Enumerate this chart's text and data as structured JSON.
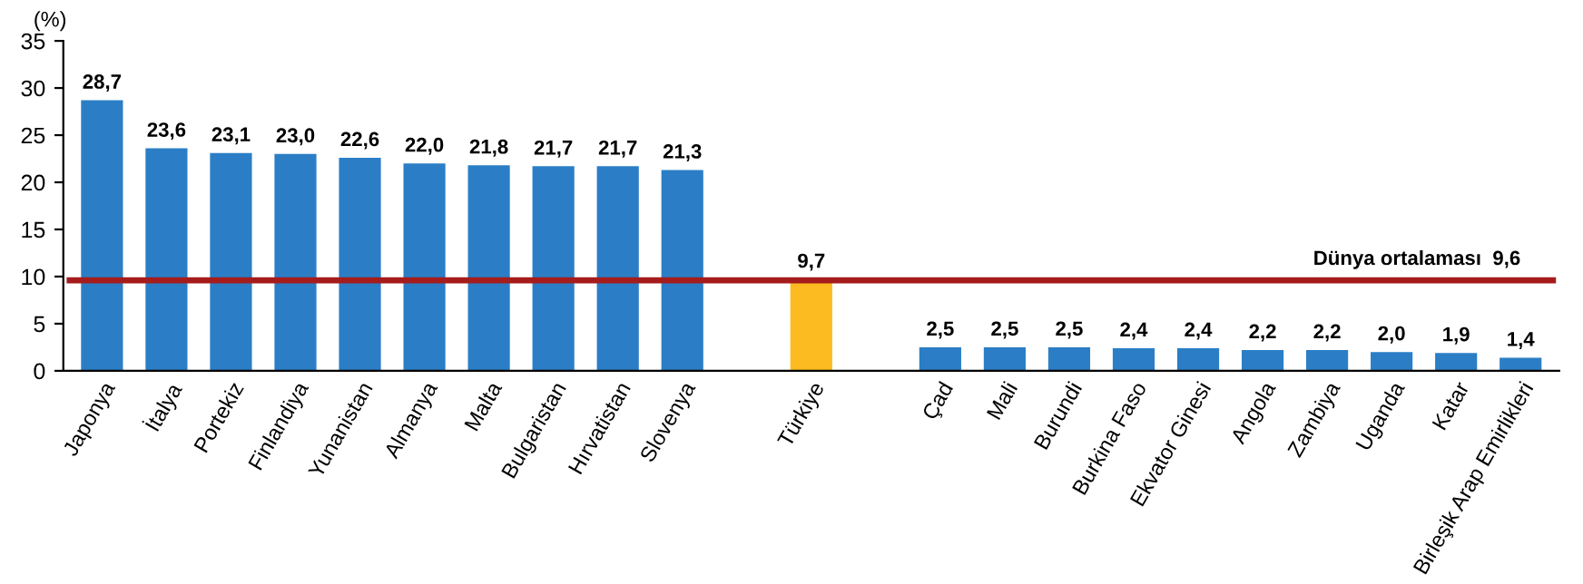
{
  "chart_data": {
    "type": "bar",
    "ylabel": "(%)",
    "categories": [
      "Japonya",
      "İtalya",
      "Portekiz",
      "Finlandiya",
      "Yunanistan",
      "Almanya",
      "Malta",
      "Bulgaristan",
      "Hırvatistan",
      "Slovenya",
      null,
      "Türkiye",
      null,
      "Çad",
      "Mali",
      "Burundi",
      "Burkina Faso",
      "Ekvator Ginesi",
      "Angola",
      "Zambiya",
      "Uganda",
      "Katar",
      "Birleşik Arap Emirlikleri"
    ],
    "values": [
      28.7,
      23.6,
      23.1,
      23.0,
      22.6,
      22.0,
      21.8,
      21.7,
      21.7,
      21.3,
      null,
      9.7,
      null,
      2.5,
      2.5,
      2.5,
      2.4,
      2.4,
      2.2,
      2.2,
      2.0,
      1.9,
      1.4
    ],
    "value_labels": [
      "28,7",
      "23,6",
      "23,1",
      "23,0",
      "22,6",
      "22,0",
      "21,8",
      "21,7",
      "21,7",
      "21,3",
      null,
      "9,7",
      null,
      "2,5",
      "2,5",
      "2,5",
      "2,4",
      "2,4",
      "2,2",
      "2,2",
      "2,0",
      "1,9",
      "1,4"
    ],
    "colors": [
      "#2b7ec6",
      "#2b7ec6",
      "#2b7ec6",
      "#2b7ec6",
      "#2b7ec6",
      "#2b7ec6",
      "#2b7ec6",
      "#2b7ec6",
      "#2b7ec6",
      "#2b7ec6",
      "#2b7ec6",
      "#fbbb21",
      "#2b7ec6",
      "#2b7ec6",
      "#2b7ec6",
      "#2b7ec6",
      "#2b7ec6",
      "#2b7ec6",
      "#2b7ec6",
      "#2b7ec6",
      "#2b7ec6",
      "#2b7ec6",
      "#2b7ec6"
    ],
    "ylim": [
      0,
      35
    ],
    "yticks": [
      0,
      5,
      10,
      15,
      20,
      25,
      30,
      35
    ],
    "grid": false,
    "legend": false,
    "ref_lines": [
      {
        "axis": "y",
        "value": 9.6,
        "label": "Dünya ortalaması  9,6",
        "color": "#a51c1c"
      }
    ]
  }
}
